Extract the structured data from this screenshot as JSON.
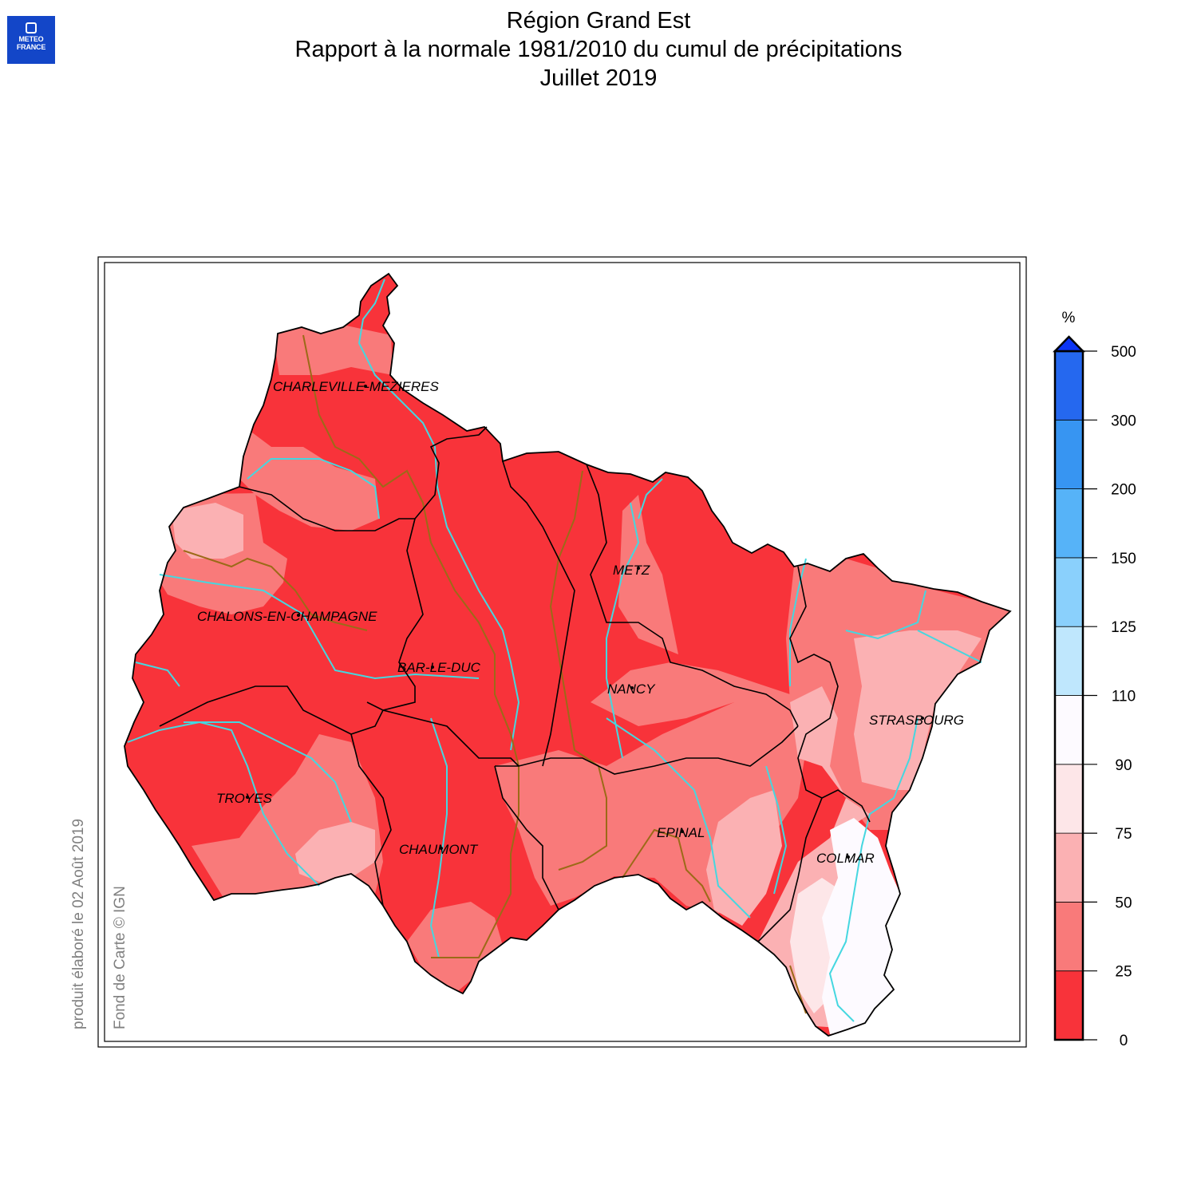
{
  "logo": {
    "line1": "METEO",
    "line2": "FRANCE"
  },
  "title": {
    "line1": "Région Grand Est",
    "line2": "Rapport à la normale 1981/2010 du cumul de précipitations",
    "line3": "Juillet 2019"
  },
  "side_notes": {
    "produced": "produit élaboré le 02 Août 2019",
    "basemap": "Fond de Carte © IGN"
  },
  "cities": [
    "CHARLEVILLE-MEZIERES",
    "METZ",
    "CHALONS-EN-CHAMPAGNE",
    "BAR-LE-DUC",
    "NANCY",
    "STRASBOURG",
    "TROYES",
    "CHAUMONT",
    "EPINAL",
    "COLMAR"
  ],
  "legend": {
    "unit": "%",
    "ticks": [
      "0",
      "25",
      "50",
      "75",
      "90",
      "110",
      "125",
      "150",
      "200",
      "300",
      "500"
    ],
    "colors": [
      "#f8333a",
      "#f97a7a",
      "#fbb1b3",
      "#fde6e8",
      "#fdfaff",
      "#bfe7fd",
      "#8ad0fc",
      "#56b3f8",
      "#3795f2",
      "#2568ef",
      "#0c35f5"
    ]
  },
  "colors": {
    "river": "#45d7e0",
    "canal": "#9c6a18",
    "border": "#000000",
    "below_25": "#f8333a",
    "25_50": "#f97a7a",
    "50_75": "#fbb1b3",
    "75_90": "#fde6e8",
    "90_110": "#fdfaff"
  }
}
